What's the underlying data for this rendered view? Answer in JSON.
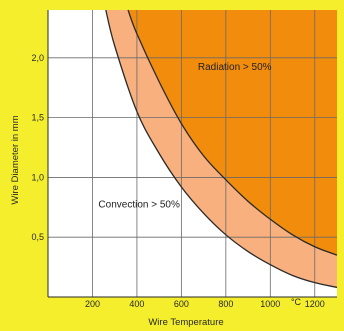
{
  "chart_data": {
    "type": "area",
    "xlabel": "Wire Temperature",
    "ylabel": "Wire Diameter in mm",
    "x_unit": "°C",
    "xlim": [
      0,
      1300
    ],
    "ylim": [
      0,
      2.4
    ],
    "x_ticks": [
      200,
      400,
      600,
      800,
      1000,
      1200
    ],
    "x_tick_labels": [
      "200",
      "400",
      "600",
      "800",
      "1000",
      "1200"
    ],
    "y_ticks": [
      0.5,
      1.0,
      1.5,
      2.0
    ],
    "y_tick_labels": [
      "0,5",
      "1,0",
      "1,5",
      "2,0"
    ],
    "grid": true,
    "series": [
      {
        "role": "upper-boundary",
        "x": [
          360,
          400,
          500,
          600,
          700,
          800,
          900,
          1000,
          1100,
          1200,
          1300
        ],
        "y": [
          2.4,
          2.2,
          1.8,
          1.45,
          1.18,
          0.98,
          0.8,
          0.65,
          0.52,
          0.42,
          0.35
        ]
      },
      {
        "role": "lower-boundary",
        "x": [
          260,
          300,
          400,
          500,
          600,
          700,
          800,
          900,
          1000,
          1100,
          1200,
          1300
        ],
        "y": [
          2.4,
          2.1,
          1.55,
          1.2,
          0.92,
          0.7,
          0.52,
          0.38,
          0.27,
          0.18,
          0.12,
          0.08
        ]
      }
    ],
    "annotations": [
      {
        "text": "Radiation > 50%",
        "x": 840,
        "y": 1.9
      },
      {
        "text": "Convection > 50%",
        "x": 410,
        "y": 0.75
      }
    ],
    "colors": {
      "background": "#f4ee2c",
      "radiation_fill": "#f28c0c",
      "transition_fill": "#f7b07e",
      "plot_bg": "#ffffff",
      "grid": "#6a6a6a",
      "boundary": "#2a2a2a"
    }
  }
}
